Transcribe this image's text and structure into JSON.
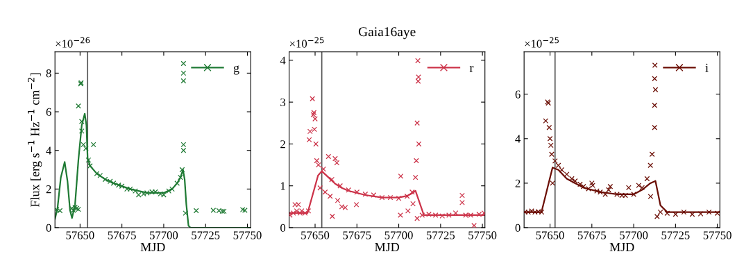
{
  "chart_data": [
    {
      "type": "scatter",
      "xlabel": "MJD",
      "ylabel": "Flux [erg s$^{−1}$ Hz$^{−1}$ cm$^{−2}$]",
      "annotations": [
        "×10$^{−26}$"
      ],
      "legend": "top right",
      "xlim": [
        57635,
        57752
      ],
      "ylim": [
        0,
        9.1
      ],
      "xticks": [
        57650,
        57675,
        57700,
        57725,
        57750
      ],
      "yticks": [
        0,
        2,
        4,
        6,
        8
      ],
      "ref_lines": [
        {
          "axis": "x",
          "value": 57654.5,
          "color": "#555555"
        }
      ],
      "series": [
        {
          "name": "g",
          "marker": "cross",
          "color": "#1f7a34",
          "x": [
            57636,
            57638,
            57645,
            57646,
            57647,
            57648,
            57649,
            57649,
            57650.4,
            57650.6,
            57651,
            57651,
            57652,
            57653.5,
            57655,
            57656,
            57658,
            57660,
            57662,
            57665,
            57668,
            57670,
            57673,
            57675,
            57678,
            57680,
            57683,
            57685,
            57688,
            57690,
            57693,
            57695,
            57698,
            57700,
            57703,
            57705,
            57708,
            57710,
            57711,
            57711.8,
            57711.8,
            57711.8,
            57711.8,
            57711.8,
            57713,
            57719.4,
            57729.6,
            57733,
            57735,
            57736,
            57747.2,
            57748.5
          ],
          "values": [
            0.94,
            0.88,
            1.0,
            0.9,
            1.05,
            1.0,
            0.95,
            6.3,
            7.45,
            7.5,
            5.0,
            5.5,
            4.3,
            4.1,
            3.5,
            3.2,
            4.3,
            2.8,
            2.7,
            2.5,
            2.4,
            2.3,
            2.2,
            2.15,
            2.0,
            2.0,
            1.9,
            1.7,
            1.75,
            1.8,
            1.85,
            1.85,
            1.75,
            1.7,
            1.9,
            2.0,
            2.3,
            2.6,
            3.0,
            7.6,
            8.0,
            8.5,
            4.0,
            4.3,
            0.75,
            0.88,
            0.9,
            0.88,
            0.85,
            0.85,
            0.93,
            0.9
          ]
        },
        {
          "type": "line",
          "line_style": "solid",
          "color": "#1f7a34",
          "x": [
            57635,
            57636.5,
            57638.5,
            57640.8,
            57642.5,
            57644,
            57645.2,
            57647,
            57649,
            57651,
            57652.8,
            57653.8,
            57654.5,
            57656,
            57660,
            57665,
            57670,
            57680,
            57690,
            57700,
            57705,
            57708,
            57710,
            57711.5,
            57712.5,
            57713.5,
            57714.8,
            57716,
            57730,
            57752
          ],
          "values": [
            0.45,
            1.0,
            2.6,
            3.4,
            2.4,
            0.9,
            0.5,
            1.2,
            3.5,
            5.3,
            5.9,
            5.3,
            3.6,
            3.2,
            2.8,
            2.5,
            2.3,
            2.0,
            1.8,
            1.8,
            2.0,
            2.3,
            2.6,
            3.0,
            2.5,
            1.2,
            0.1,
            0,
            0,
            0
          ]
        }
      ]
    },
    {
      "type": "scatter",
      "title": "Gaia16aye",
      "xlabel": "MJD",
      "annotations": [
        "×10$^{−25}$"
      ],
      "legend": "top right",
      "xlim": [
        57634.5,
        57751.5
      ],
      "ylim": [
        0,
        4.2
      ],
      "xticks": [
        57650,
        57675,
        57700,
        57725,
        57750
      ],
      "yticks": [
        0,
        1,
        2,
        3,
        4
      ],
      "ref_lines": [
        {
          "axis": "x",
          "value": 57654,
          "color": "#555555"
        }
      ],
      "series": [
        {
          "name": "r",
          "marker": "cross",
          "color": "#cc3349",
          "x": [
            57635,
            57637,
            57638,
            57639,
            57640,
            57641,
            57642,
            57644,
            57646,
            57646.5,
            57647,
            57648.4,
            57649,
            57649.3,
            57649.6,
            57650,
            57650.5,
            57651,
            57652,
            57653,
            57655,
            57656,
            57658,
            57659,
            57660,
            57660.3,
            57662,
            57663,
            57663.5,
            57665,
            57666,
            57668,
            57670,
            57674.7,
            57675,
            57680,
            57685,
            57690,
            57695,
            57700,
            57701,
            57701.2,
            57705,
            57705.5,
            57708,
            57708.5,
            57710,
            57710.5,
            57711,
            57711,
            57711.4,
            57711.6,
            57711.8,
            57712,
            57714,
            57718,
            57722,
            57726,
            57730,
            57734,
            57737.9,
            57737.9,
            57740,
            57743,
            57745,
            57748,
            57751
          ],
          "values": [
            0.3,
            0.35,
            0.55,
            0.4,
            0.55,
            0.35,
            0.4,
            0.35,
            0.4,
            2.1,
            2.3,
            3.08,
            2.7,
            2.75,
            2.35,
            2.6,
            2.0,
            1.6,
            1.5,
            0.95,
            1.4,
            0.85,
            1.7,
            0.75,
            1.15,
            0.27,
            1.65,
            1.55,
            0.65,
            1.0,
            0.5,
            0.48,
            0.9,
            0.55,
            0.85,
            0.8,
            0.78,
            0.72,
            0.72,
            0.7,
            0.3,
            1.23,
            0.75,
            0.4,
            0.85,
            0.57,
            1.2,
            1.6,
            0.22,
            2.5,
            3.99,
            3.5,
            3.6,
            2.0,
            0.3,
            0.32,
            0.3,
            0.28,
            0.3,
            0.35,
            0.77,
            0.6,
            0.3,
            0.3,
            0.05,
            0.32,
            0.35
          ]
        },
        {
          "type": "line",
          "line_style": "solid",
          "color": "#cc3349",
          "x": [
            57634.5,
            57640,
            57645.5,
            57651.8,
            57654,
            57658,
            57662,
            57666,
            57670,
            57680,
            57690,
            57700,
            57705,
            57708,
            57710,
            57712,
            57715,
            57720,
            57751.5
          ],
          "values": [
            0.35,
            0.35,
            0.35,
            1.25,
            1.35,
            1.2,
            1.05,
            0.95,
            0.88,
            0.78,
            0.72,
            0.72,
            0.76,
            0.82,
            0.88,
            0.65,
            0.3,
            0.3,
            0.3
          ]
        }
      ]
    },
    {
      "type": "scatter",
      "xlabel": "MJD",
      "annotations": [
        "×10$^{−25}$"
      ],
      "legend": "top right",
      "xlim": [
        57634.5,
        57751.5
      ],
      "ylim": [
        0,
        7.9
      ],
      "xticks": [
        57650,
        57675,
        57700,
        57725,
        57750
      ],
      "yticks": [
        0,
        2,
        4,
        6
      ],
      "ref_lines": [
        {
          "axis": "x",
          "value": 57653,
          "color": "#555555"
        }
      ],
      "series": [
        {
          "name": "i",
          "marker": "cross",
          "color": "#6b0e05",
          "x": [
            57635,
            57637,
            57639,
            57641,
            57643,
            57645,
            57647.4,
            57648.5,
            57649,
            57649.5,
            57650,
            57650.5,
            57651,
            57651.5,
            57653,
            57655,
            57657,
            57660,
            57663,
            57665,
            57668,
            57670,
            57673,
            57675,
            57675.5,
            57678,
            57680,
            57683,
            57685,
            57686,
            57690,
            57693,
            57695,
            57697,
            57700,
            57703,
            57705,
            57708,
            57710,
            57710.1,
            57711,
            57712.5,
            57712.5,
            57712.5,
            57712.7,
            57713,
            57714,
            57716,
            57720,
            57725,
            57730,
            57735,
            57740,
            57745,
            57750
          ],
          "values": [
            0.7,
            0.7,
            0.75,
            0.7,
            0.72,
            0.7,
            4.8,
            5.65,
            5.6,
            4.5,
            4.0,
            3.7,
            3.3,
            2.0,
            3.0,
            2.8,
            2.6,
            2.4,
            2.2,
            2.1,
            1.95,
            1.85,
            1.75,
            2.0,
            1.9,
            1.65,
            1.6,
            1.5,
            1.7,
            1.85,
            1.5,
            1.45,
            1.45,
            1.8,
            1.5,
            1.9,
            1.8,
            2.2,
            2.8,
            1.4,
            3.3,
            4.5,
            5.5,
            6.7,
            7.3,
            6.2,
            0.5,
            0.7,
            0.65,
            0.6,
            0.7,
            0.6,
            0.62,
            0.7,
            0.65
          ]
        },
        {
          "type": "line",
          "line_style": "solid",
          "color": "#6b0e05",
          "x": [
            57634.5,
            57640,
            57644.9,
            57651.5,
            57655,
            57660,
            57665,
            57670,
            57680,
            57690,
            57700,
            57705,
            57710,
            57713,
            57716,
            57720,
            57751.5
          ],
          "values": [
            0.7,
            0.7,
            0.7,
            2.7,
            2.6,
            2.2,
            2.0,
            1.8,
            1.6,
            1.5,
            1.5,
            1.7,
            2.0,
            2.1,
            1.0,
            0.7,
            0.7
          ]
        }
      ]
    }
  ]
}
